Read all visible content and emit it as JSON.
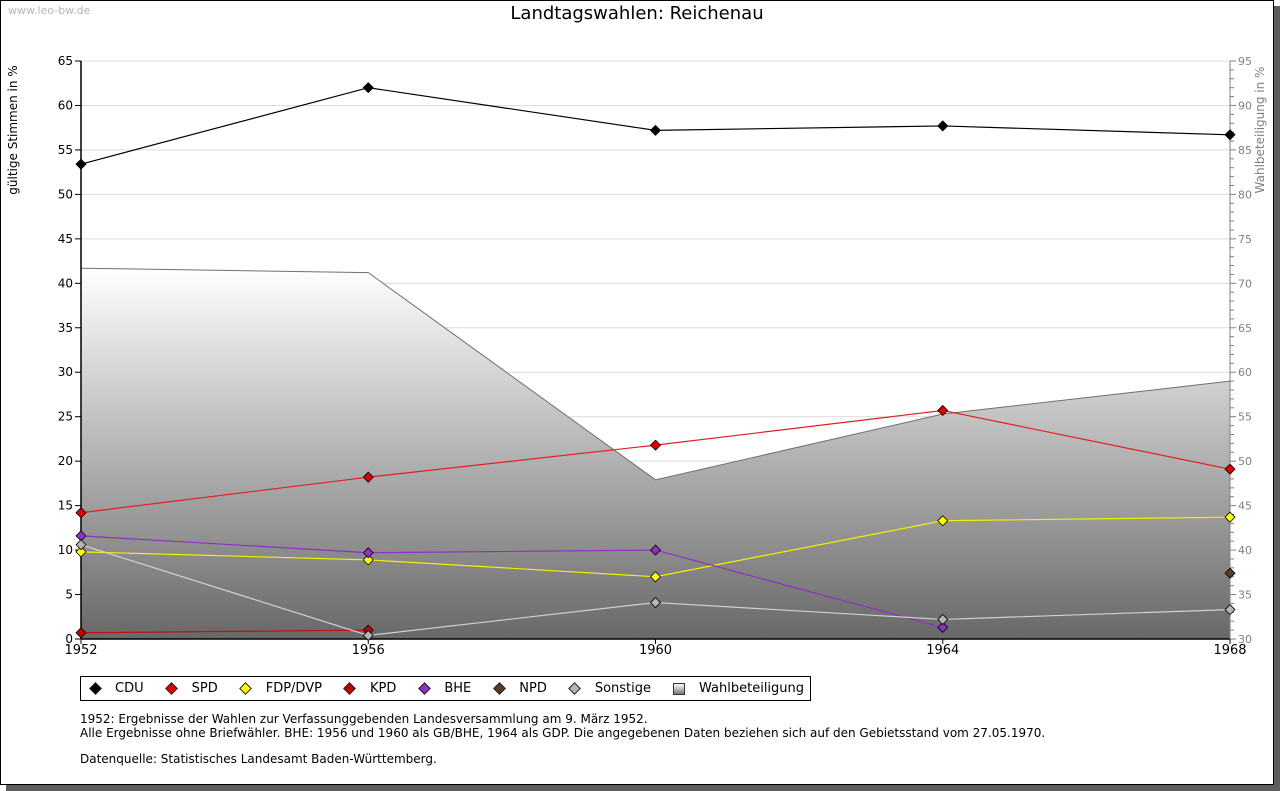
{
  "watermark": "www.leo-bw.de",
  "chart_data": {
    "type": "line",
    "title": "Landtagswahlen: Reichenau",
    "ylabel": "gültige Stimmen in %",
    "y2label": "Wahlbeteiligung in %",
    "x": [
      1952,
      1956,
      1960,
      1964,
      1968
    ],
    "x_tick_labels": [
      "1952",
      "1956",
      "1960",
      "1964",
      "1968"
    ],
    "ylim": [
      0,
      65
    ],
    "y_ticks": [
      0,
      5,
      10,
      15,
      20,
      25,
      30,
      35,
      40,
      45,
      50,
      55,
      60,
      65
    ],
    "y2lim": [
      30,
      95
    ],
    "y2_ticks": [
      30,
      35,
      40,
      45,
      50,
      55,
      60,
      65,
      70,
      75,
      80,
      85,
      90,
      95
    ],
    "grid": true,
    "legend_position": "bottom",
    "series": [
      {
        "name": "CDU",
        "color": "#000000",
        "line_color": "#000000",
        "axis": "left",
        "values": [
          53.4,
          62.0,
          57.2,
          57.7,
          56.7
        ]
      },
      {
        "name": "SPD",
        "color": "#e00000",
        "line_color": "#e02020",
        "axis": "left",
        "values": [
          14.2,
          18.2,
          21.8,
          25.7,
          19.1
        ]
      },
      {
        "name": "FDP/DVP",
        "color": "#ffff00",
        "line_color": "#f0f000",
        "axis": "left",
        "values": [
          9.8,
          8.9,
          7.0,
          13.3,
          13.7
        ]
      },
      {
        "name": "KPD",
        "color": "#c00000",
        "line_color": "#c01010",
        "axis": "left",
        "values": [
          0.7,
          1.0,
          null,
          null,
          null
        ]
      },
      {
        "name": "BHE",
        "color": "#9030c0",
        "line_color": "#9030c0",
        "axis": "left",
        "values": [
          11.6,
          9.7,
          10.0,
          1.3,
          null
        ]
      },
      {
        "name": "NPD",
        "color": "#5a3a28",
        "line_color": "#5a3a28",
        "axis": "left",
        "values": [
          null,
          null,
          null,
          null,
          7.4
        ]
      },
      {
        "name": "Sonstige",
        "color": "#b4b4b4",
        "line_color": "#d0d0d0",
        "axis": "left",
        "values": [
          10.6,
          0.4,
          4.1,
          2.2,
          3.3
        ]
      },
      {
        "name": "Wahlbeteiligung",
        "type": "area",
        "color": "#808080",
        "line_color": "#707070",
        "axis": "right",
        "values": [
          71.7,
          71.2,
          47.9,
          55.3,
          59.0
        ]
      }
    ]
  },
  "notes": {
    "line1": "1952: Ergebnisse der Wahlen zur Verfassunggebenden Landesversammlung am 9. März 1952.",
    "line2": "Alle Ergebnisse ohne Briefwähler. BHE: 1956 und 1960 als GB/BHE, 1964 als GDP. Die angegebenen Daten beziehen sich auf den Gebietsstand vom 27.05.1970.",
    "source": "Datenquelle: Statistisches Landesamt Baden-Württemberg."
  }
}
